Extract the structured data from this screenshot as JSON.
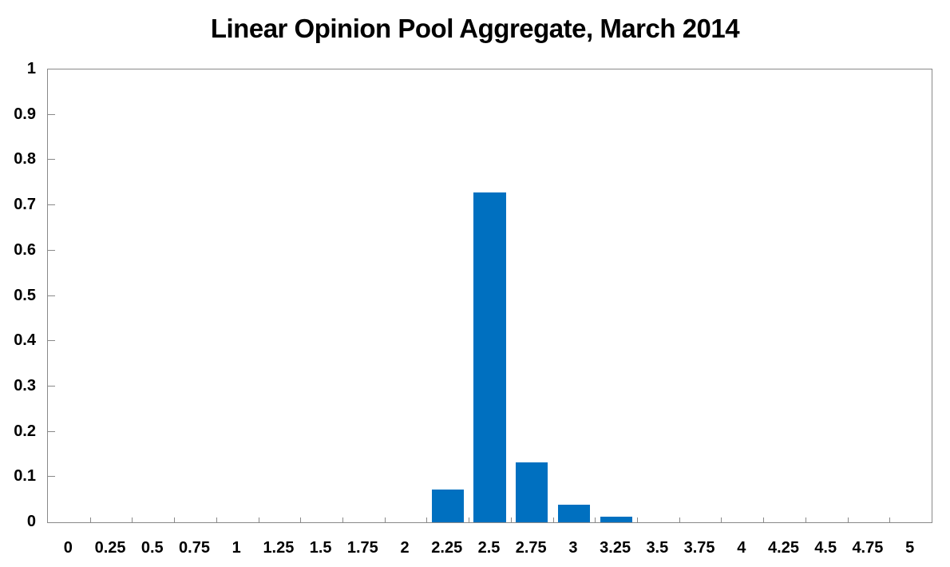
{
  "title": "Linear Opinion Pool Aggregate, March 2014",
  "colors": {
    "bar": "#0070C0",
    "axis": "#898989",
    "text": "#000000",
    "background": "#FFFFFF"
  },
  "chart_data": {
    "type": "bar",
    "title": "Linear Opinion Pool Aggregate, March 2014",
    "categories": [
      "0",
      "0.25",
      "0.5",
      "0.75",
      "1",
      "1.25",
      "1.5",
      "1.75",
      "2",
      "2.25",
      "2.5",
      "2.75",
      "3",
      "3.25",
      "3.5",
      "3.75",
      "4",
      "4.25",
      "4.5",
      "4.75",
      "5"
    ],
    "values": [
      0,
      0,
      0,
      0,
      0,
      0,
      0,
      0,
      0,
      0.072,
      0.729,
      0.132,
      0.039,
      0.012,
      0,
      0,
      0,
      0,
      0,
      0,
      0
    ],
    "xlabel": "",
    "ylabel": "",
    "ylim": [
      0,
      1
    ],
    "y_tick_values": [
      0,
      0.1,
      0.2,
      0.3,
      0.4,
      0.5,
      0.6,
      0.7,
      0.8,
      0.9,
      1
    ],
    "y_tick_labels": [
      "0",
      "0.1",
      "0.2",
      "0.3",
      "0.4",
      "0.5",
      "0.6",
      "0.7",
      "0.8",
      "0.9",
      "1"
    ],
    "grid": false,
    "legend": false,
    "bar_gap_fraction": 0.24
  }
}
